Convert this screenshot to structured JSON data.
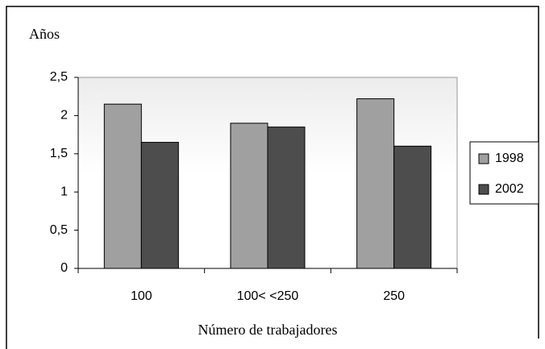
{
  "chart_data": {
    "type": "bar",
    "y_label": "Años",
    "x_label": "Número de trabajadores",
    "categories": [
      "100",
      "100< <250",
      "250"
    ],
    "series": [
      {
        "name": "1998",
        "color": "#a0a0a0",
        "values": [
          2.15,
          1.9,
          2.22
        ]
      },
      {
        "name": "2002",
        "color": "#4d4d4d",
        "values": [
          1.65,
          1.85,
          1.6
        ]
      }
    ],
    "ylim": [
      0,
      2.5
    ],
    "yticks": [
      0,
      {
        "value": 0.5,
        "label": "0,5"
      },
      1,
      {
        "value": 1.5,
        "label": "1,5"
      },
      2,
      {
        "value": 2.5,
        "label": "2,5"
      }
    ],
    "legend": "right"
  }
}
